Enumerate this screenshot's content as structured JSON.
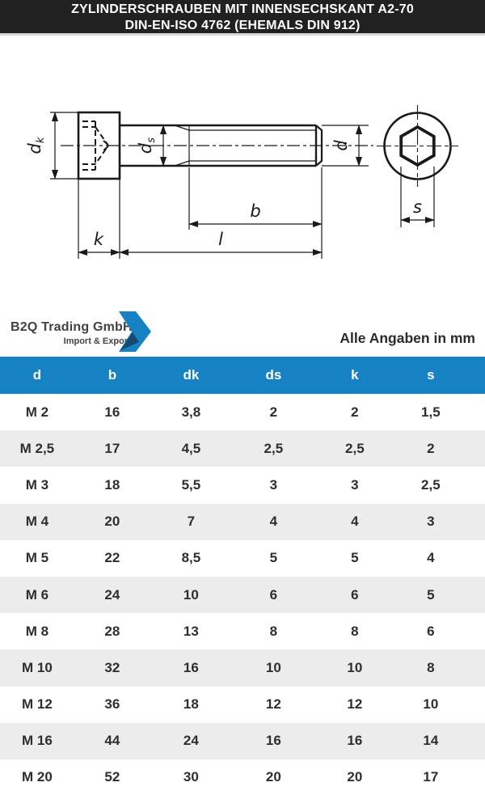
{
  "header": {
    "line1": "ZYLINDERSCHRAUBEN MIT INNENSECHSKANT A2-70",
    "line2": "DIN-EN-ISO 4762 (EHEMALS DIN 912)"
  },
  "logo": {
    "company": "B2Q Trading GmbH",
    "tagline": "Import & Export",
    "chevron_icon": "blue-chevron"
  },
  "note": "Alle Angaben in mm",
  "drawing": {
    "labels": {
      "dk_main": "d",
      "dk_sub": "k",
      "ds_main": "d",
      "ds_sub": "s",
      "d": "d",
      "b": "b",
      "k": "k",
      "l": "l",
      "s": "s"
    }
  },
  "table": {
    "columns": [
      "d",
      "b",
      "dk",
      "ds",
      "k",
      "s"
    ],
    "rows": [
      [
        "M 2",
        "16",
        "3,8",
        "2",
        "2",
        "1,5"
      ],
      [
        "M 2,5",
        "17",
        "4,5",
        "2,5",
        "2,5",
        "2"
      ],
      [
        "M 3",
        "18",
        "5,5",
        "3",
        "3",
        "2,5"
      ],
      [
        "M 4",
        "20",
        "7",
        "4",
        "4",
        "3"
      ],
      [
        "M 5",
        "22",
        "8,5",
        "5",
        "5",
        "4"
      ],
      [
        "M 6",
        "24",
        "10",
        "6",
        "6",
        "5"
      ],
      [
        "M 8",
        "28",
        "13",
        "8",
        "8",
        "6"
      ],
      [
        "M 10",
        "32",
        "16",
        "10",
        "10",
        "8"
      ],
      [
        "M 12",
        "36",
        "18",
        "12",
        "12",
        "10"
      ],
      [
        "M 16",
        "44",
        "24",
        "16",
        "16",
        "14"
      ],
      [
        "M 20",
        "52",
        "30",
        "20",
        "20",
        "17"
      ]
    ]
  },
  "colors": {
    "accent_blue": "#1681c3",
    "title_bar": "#212121",
    "row_alt": "#ececec",
    "text_dark": "#2e2e2e",
    "logo_shadow": "#164a6e"
  }
}
